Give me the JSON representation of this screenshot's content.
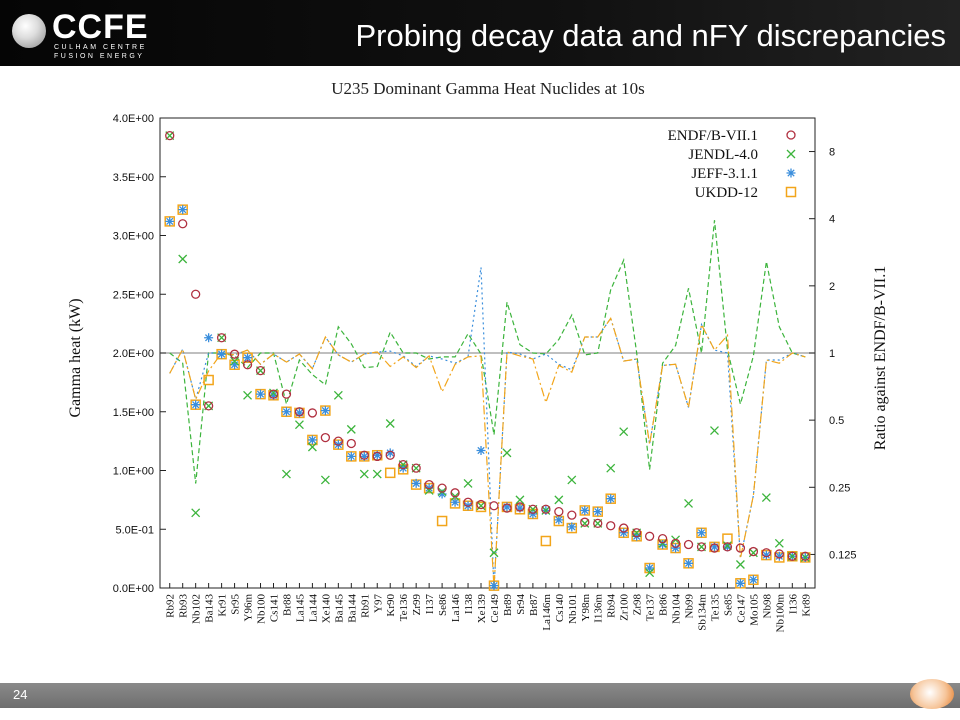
{
  "header": {
    "title": "Probing decay data and nFY discrepancies",
    "logo_text": "CCFE",
    "logo_sub1": "CULHAM CENTRE",
    "logo_sub2": "FUSION ENERGY"
  },
  "footer": {
    "page_number": "24"
  },
  "colors": {
    "endf": "#b03040",
    "jendl": "#3cb43c",
    "jeff": "#3a8edc",
    "ukdd": "#f2a51a",
    "header_bg": "#0a0a0a",
    "footer_bg": "#7a7a7a"
  },
  "chart_data": {
    "type": "scatter",
    "title": "U235 Dominant Gamma Heat Nuclides at 10s",
    "ylabel": "Gamma heat (kW)",
    "y2label": "Ratio against ENDF/B-VII.1",
    "yticks": [
      "0.0E+00",
      "5.0E-01",
      "1.0E+00",
      "1.5E+00",
      "2.0E+00",
      "2.5E+00",
      "3.0E+00",
      "3.5E+00",
      "4.0E+00"
    ],
    "ylim": [
      0,
      4.0
    ],
    "y2ticks": [
      "0.125",
      "0.25",
      "0.5",
      "1",
      "2",
      "4",
      "8"
    ],
    "y2lim": [
      0.0884,
      11.31
    ],
    "y2scale": "log2",
    "grid": false,
    "legend_position": "top-right",
    "categories": [
      "Rb92",
      "Rb93",
      "Nb102",
      "Ba143",
      "Kr91",
      "Sr95",
      "Y96m",
      "Nb100",
      "Cs141",
      "Br88",
      "La145",
      "La144",
      "Xe140",
      "Ba145",
      "Ba144",
      "Rb91",
      "Y97",
      "Kr90",
      "Te136",
      "Zr99",
      "I137",
      "Se86",
      "La146",
      "I138",
      "Xe139",
      "Ce149",
      "Br89",
      "Sr94",
      "Br87",
      "La146m",
      "Cs140",
      "Nb101",
      "Y98m",
      "I136m",
      "Rb94",
      "Zr100",
      "Zr98",
      "Te137",
      "Br86",
      "Nb104",
      "Nb99",
      "Sb134m",
      "Te135",
      "Se85",
      "Ce147",
      "Mo105",
      "Nb98",
      "Nb100m",
      "I136",
      "Kr89"
    ],
    "series": [
      {
        "name": "ENDF/B-VII.1",
        "marker": "circle",
        "color": "#b03040",
        "values": [
          3.85,
          3.1,
          2.5,
          1.55,
          2.13,
          1.99,
          1.9,
          1.85,
          1.65,
          1.65,
          1.5,
          1.49,
          1.28,
          1.25,
          1.23,
          1.13,
          1.12,
          1.13,
          1.05,
          1.02,
          0.88,
          0.85,
          0.81,
          0.73,
          0.71,
          0.7,
          0.68,
          0.69,
          0.67,
          0.67,
          0.65,
          0.62,
          0.56,
          0.55,
          0.53,
          0.51,
          0.47,
          0.44,
          0.42,
          0.38,
          0.37,
          0.35,
          0.34,
          0.35,
          0.34,
          0.31,
          0.3,
          0.29,
          0.27,
          0.27
        ]
      },
      {
        "name": "JENDL-4.0",
        "marker": "x",
        "color": "#3cb43c",
        "values": [
          3.85,
          2.8,
          0.64,
          1.55,
          2.13,
          1.93,
          1.64,
          1.85,
          1.66,
          0.97,
          1.39,
          1.2,
          0.92,
          1.64,
          1.35,
          0.97,
          0.97,
          1.4,
          1.05,
          1.02,
          0.83,
          0.82,
          0.78,
          0.89,
          0.7,
          0.3,
          1.15,
          0.75,
          0.67,
          0.66,
          0.75,
          0.92,
          0.55,
          0.55,
          1.02,
          1.33,
          0.47,
          0.13,
          0.38,
          0.41,
          0.72,
          0.35,
          1.34,
          0.36,
          0.2,
          0.3,
          0.77,
          0.38,
          0.27,
          0.26
        ]
      },
      {
        "name": "JEFF-3.1.1",
        "marker": "star",
        "color": "#3a8edc",
        "values": [
          3.12,
          3.22,
          1.56,
          2.13,
          1.99,
          1.9,
          1.96,
          1.65,
          1.64,
          1.5,
          1.49,
          1.26,
          1.51,
          1.22,
          1.12,
          1.12,
          1.13,
          1.15,
          1.02,
          0.89,
          0.85,
          0.8,
          0.73,
          0.7,
          1.17,
          0.02,
          0.69,
          0.68,
          0.63,
          0.66,
          0.58,
          0.52,
          0.66,
          0.65,
          0.76,
          0.47,
          0.44,
          0.17,
          0.37,
          0.34,
          0.21,
          0.47,
          0.35,
          0.35,
          0.04,
          0.07,
          0.28,
          0.27,
          0.27,
          0.26
        ]
      },
      {
        "name": "UKDD-12",
        "marker": "square",
        "color": "#f2a51a",
        "values": [
          3.12,
          3.22,
          1.56,
          1.77,
          1.99,
          1.9,
          1.96,
          1.65,
          1.64,
          1.5,
          1.49,
          1.26,
          1.51,
          1.22,
          1.12,
          1.12,
          1.13,
          0.98,
          1.01,
          0.88,
          0.85,
          0.57,
          0.72,
          0.7,
          0.69,
          0.02,
          0.69,
          0.67,
          0.63,
          0.4,
          0.57,
          0.51,
          0.66,
          0.65,
          0.76,
          0.47,
          0.44,
          0.17,
          0.37,
          0.34,
          0.21,
          0.47,
          0.35,
          0.42,
          0.04,
          0.07,
          0.28,
          0.26,
          0.27,
          0.26
        ]
      }
    ],
    "ratio_series": [
      {
        "name": "JENDL-4.0",
        "color": "#3cb43c",
        "values": [
          1,
          0.9,
          0.26,
          1,
          1,
          0.97,
          0.86,
          1,
          1,
          0.59,
          0.93,
          0.8,
          0.72,
          1.31,
          1.1,
          0.86,
          0.87,
          1.24,
          1,
          1,
          0.94,
          0.96,
          0.96,
          1.22,
          0.99,
          0.43,
          1.69,
          1.09,
          1,
          0.99,
          1.15,
          1.48,
          0.98,
          1,
          1.92,
          2.61,
          1,
          0.3,
          0.9,
          1.08,
          1.95,
          1,
          3.94,
          1.03,
          0.59,
          0.97,
          2.57,
          1.31,
          1,
          0.96
        ]
      },
      {
        "name": "JEFF-3.1.1",
        "color": "#3a8edc",
        "values": [
          0.81,
          1.04,
          0.62,
          1,
          1,
          0.98,
          1.03,
          0.89,
          0.99,
          0.91,
          0.99,
          0.85,
          1.18,
          0.98,
          0.91,
          0.99,
          1.01,
          1.02,
          0.97,
          0.87,
          0.97,
          0.94,
          0.9,
          0.96,
          2.42,
          0.03,
          1.01,
          0.99,
          0.94,
          0.99,
          0.89,
          0.84,
          1.18,
          1.18,
          1.43,
          0.92,
          0.94,
          0.39,
          0.88,
          0.89,
          0.57,
          1.34,
          1.03,
          1,
          0.12,
          0.23,
          0.93,
          0.93,
          1,
          0.96
        ]
      },
      {
        "name": "UKDD-12",
        "color": "#f2a51a",
        "values": [
          0.81,
          1.04,
          0.62,
          0.83,
          1,
          0.98,
          1.03,
          0.89,
          0.99,
          0.91,
          0.99,
          0.85,
          1.18,
          0.98,
          0.91,
          0.99,
          1.01,
          0.87,
          0.96,
          0.86,
          0.97,
          0.67,
          0.89,
          0.96,
          0.97,
          0.03,
          1.01,
          0.97,
          0.94,
          0.6,
          0.88,
          0.82,
          1.18,
          1.18,
          1.43,
          0.92,
          0.94,
          0.39,
          0.88,
          0.89,
          0.57,
          1.34,
          1.03,
          1.2,
          0.12,
          0.23,
          0.93,
          0.9,
          1,
          0.96
        ]
      }
    ]
  }
}
